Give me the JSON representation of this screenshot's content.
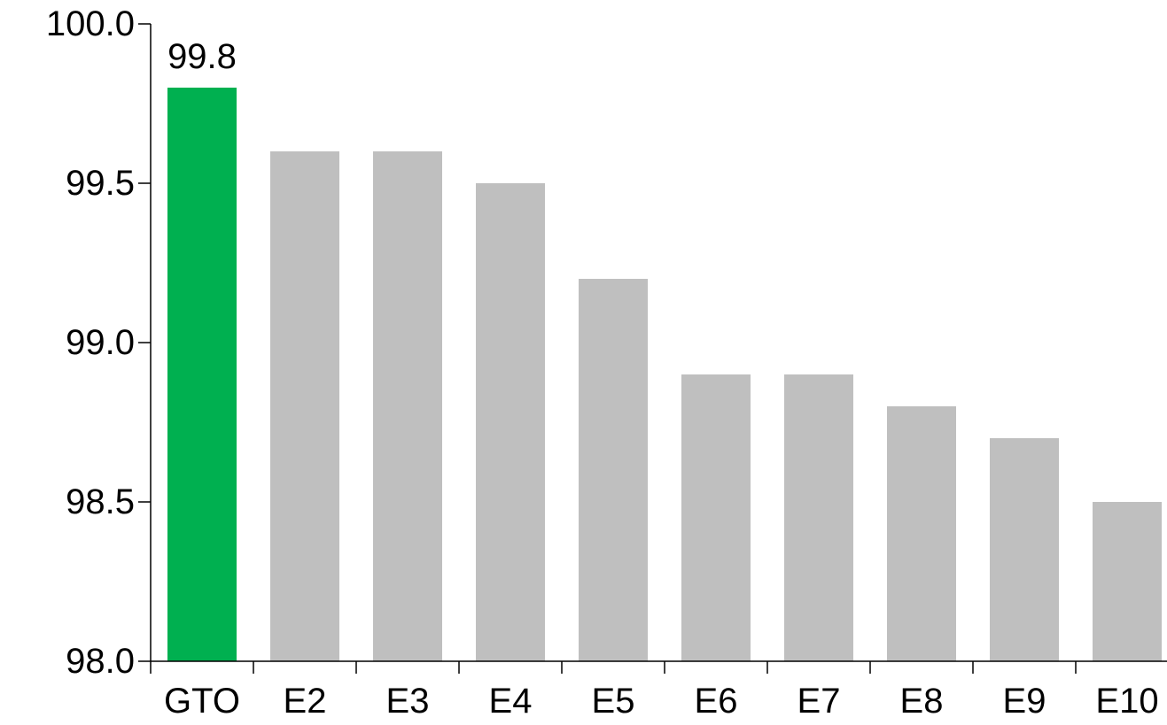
{
  "chart_data": {
    "type": "bar",
    "title": "",
    "xlabel": "",
    "ylabel": "",
    "categories": [
      "GTO",
      "E2",
      "E3",
      "E4",
      "E5",
      "E6",
      "E7",
      "E8",
      "E9",
      "E10"
    ],
    "values": [
      99.8,
      99.6,
      99.6,
      99.5,
      99.2,
      98.9,
      98.9,
      98.8,
      98.7,
      98.5
    ],
    "ylim": [
      98.0,
      100.0
    ],
    "yticks": [
      "98.0",
      "98.5",
      "99.0",
      "99.5",
      "100.0"
    ],
    "data_labels": [
      {
        "category": "GTO",
        "text": "99.8"
      }
    ],
    "highlight_category": "GTO",
    "colors": {
      "highlight": "#00B050",
      "default": "#BFBFBF",
      "axis": "#000000"
    },
    "grid": false,
    "legend": "none"
  }
}
